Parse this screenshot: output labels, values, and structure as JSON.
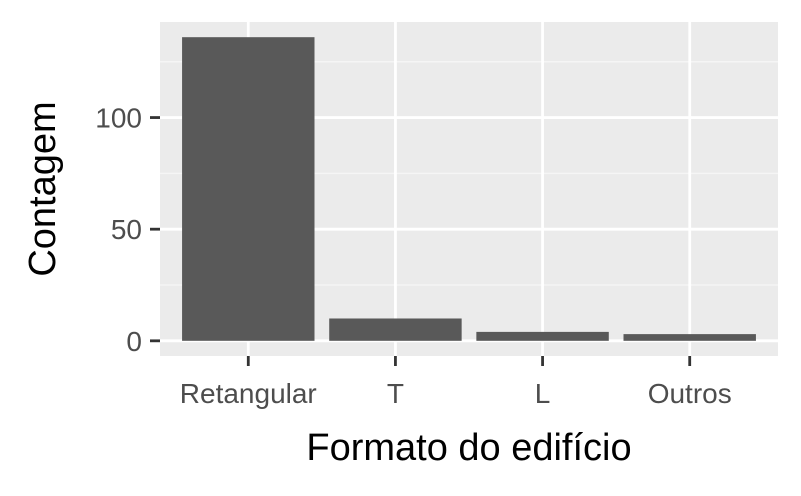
{
  "chart_data": {
    "type": "bar",
    "categories": [
      "Retangular",
      "T",
      "L",
      "Outros"
    ],
    "values": [
      136,
      10,
      4,
      3
    ],
    "xlabel": "Formato do edifício",
    "ylabel": "Contagem",
    "ylim": [
      -6.8,
      142.8
    ],
    "yticks": [
      0,
      50,
      100
    ],
    "grid": true,
    "legend": "none",
    "colors": {
      "panel_background": "#ebebeb",
      "grid_major": "#ffffff",
      "grid_minor": "#f5f5f5",
      "bar_fill": "#595959",
      "tick_text": "#4d4d4d",
      "tick_mark": "#333333",
      "title_text": "#000000"
    }
  }
}
